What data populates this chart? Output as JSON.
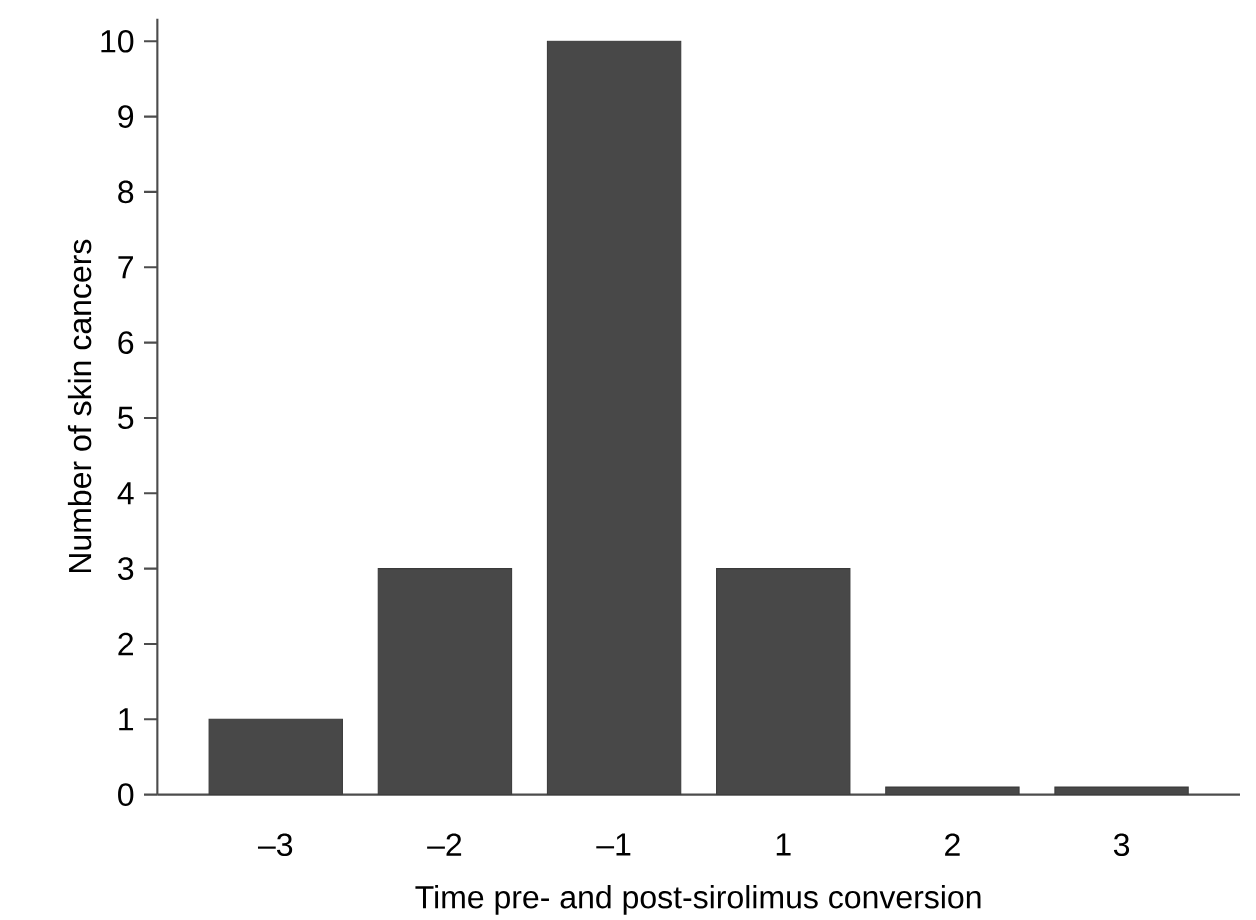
{
  "chart_data": {
    "type": "bar",
    "categories": [
      "–3",
      "–2",
      "–1",
      "1",
      "2",
      "3"
    ],
    "values": [
      1,
      3,
      10,
      3,
      0.1,
      0.1
    ],
    "color": "#484848",
    "xlabel": "Time pre- and post-sirolimus conversion",
    "ylabel": "Number of skin cancers",
    "ylim": [
      0,
      10.3
    ],
    "yticks": [
      0,
      1,
      2,
      3,
      4,
      5,
      6,
      7,
      8,
      9,
      10
    ],
    "grid": false
  }
}
